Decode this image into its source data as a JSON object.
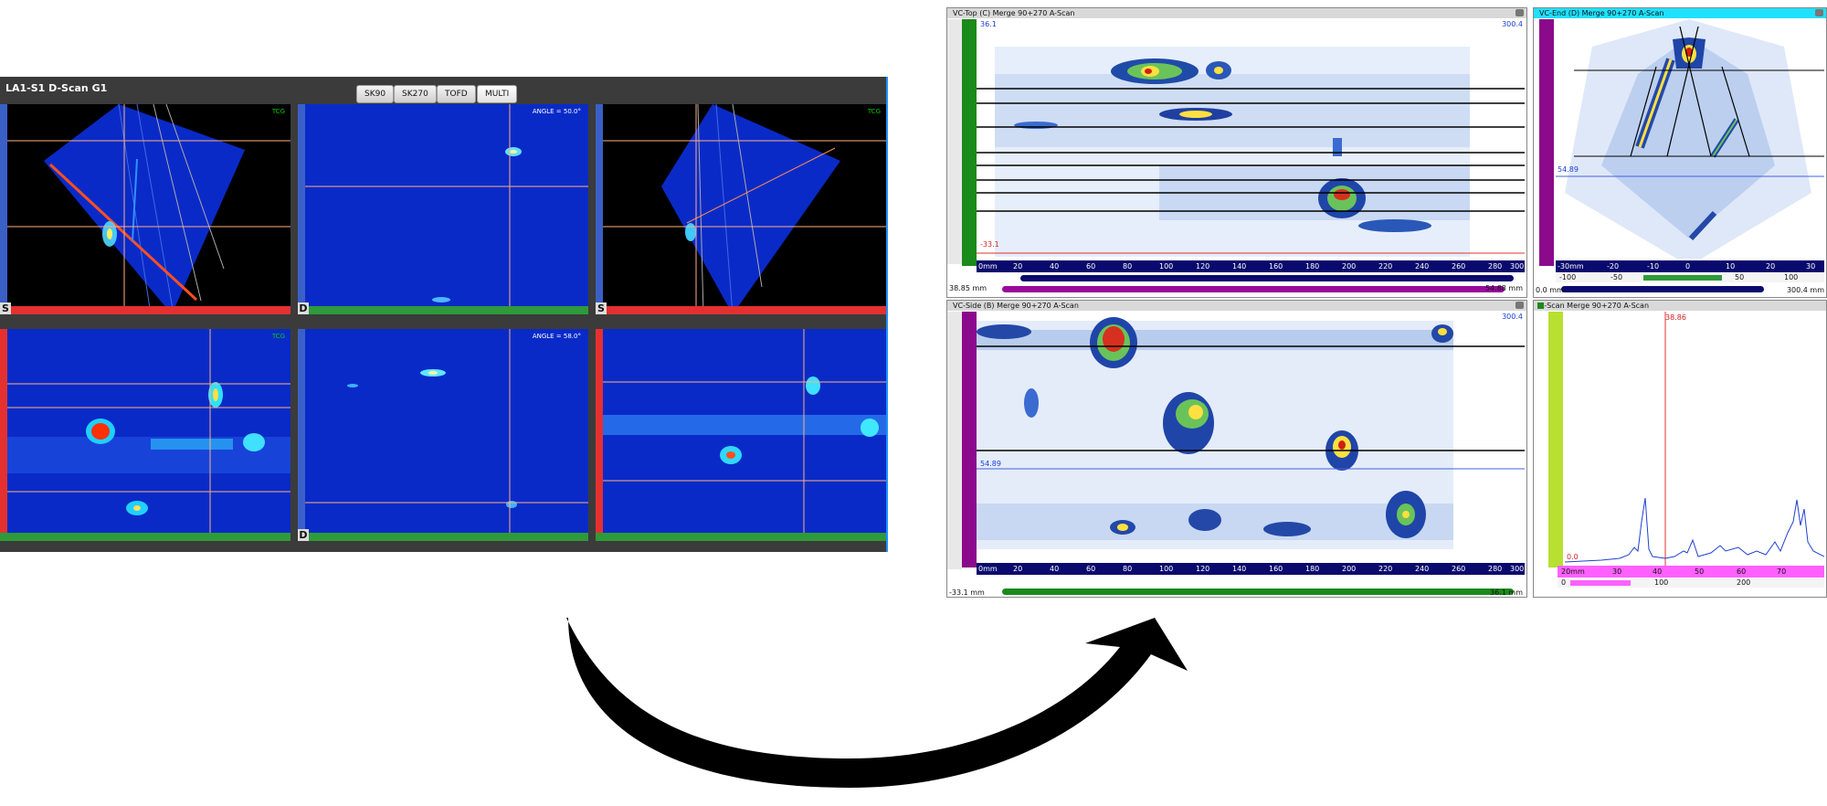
{
  "left_app": {
    "title": "LA1-S1 D-Scan G1",
    "tabs": [
      "SK90",
      "SK270",
      "TOFD",
      "MULTI"
    ],
    "panel_letters": [
      "S",
      "D",
      "S"
    ],
    "tcg_label": "TCG",
    "angle_labels": [
      "ANGLE = 50.0°",
      "ANGLE = 58.0°"
    ],
    "colors": {
      "bg": "#3b3b3b",
      "scan": "#0020c8",
      "red_bar": "#e53030",
      "green_bar": "#2e9a3a"
    }
  },
  "right_app": {
    "top_view": {
      "title": "VC-Top (C) Merge 90+270 A-Scan",
      "corner_left": "36.1",
      "corner_right": "300.4",
      "bottom_left_red": "-33.1",
      "range_left": "38.85 mm",
      "range_right": "54.88 mm",
      "ruler_ticks": [
        "0mm",
        "20",
        "40",
        "60",
        "80",
        "100",
        "120",
        "140",
        "160",
        "180",
        "200",
        "220",
        "240",
        "260",
        "280",
        "300"
      ]
    },
    "end_view": {
      "title": "VC-End (D) Merge 90+270 A-Scan",
      "cursor_value": "54.89",
      "range_left": "0.0 mm",
      "range_right": "300.4 mm",
      "ruler_ticks": [
        "-30mm",
        "-20",
        "-10",
        "0",
        "10",
        "20",
        "30"
      ],
      "lower_ticks": [
        "-100",
        "-50",
        "50",
        "100"
      ]
    },
    "side_view": {
      "title": "VC-Side (B) Merge 90+270 A-Scan",
      "corner_right": "300.4",
      "cursor_value": "54.89",
      "range_left": "-33.1 mm",
      "range_right": "36.1 mm",
      "ruler_ticks": [
        "0mm",
        "20",
        "40",
        "60",
        "80",
        "100",
        "120",
        "140",
        "160",
        "180",
        "200",
        "220",
        "240",
        "260",
        "280",
        "300"
      ]
    },
    "ascan_view": {
      "title": "A-Scan Merge 90+270 A-Scan",
      "cursor_value": "38.86",
      "baseline_label": "0.0",
      "ruler_ticks": [
        "20mm",
        "30",
        "40",
        "50",
        "60",
        "70"
      ],
      "lower_ticks": [
        "0",
        "100",
        "200"
      ]
    }
  }
}
